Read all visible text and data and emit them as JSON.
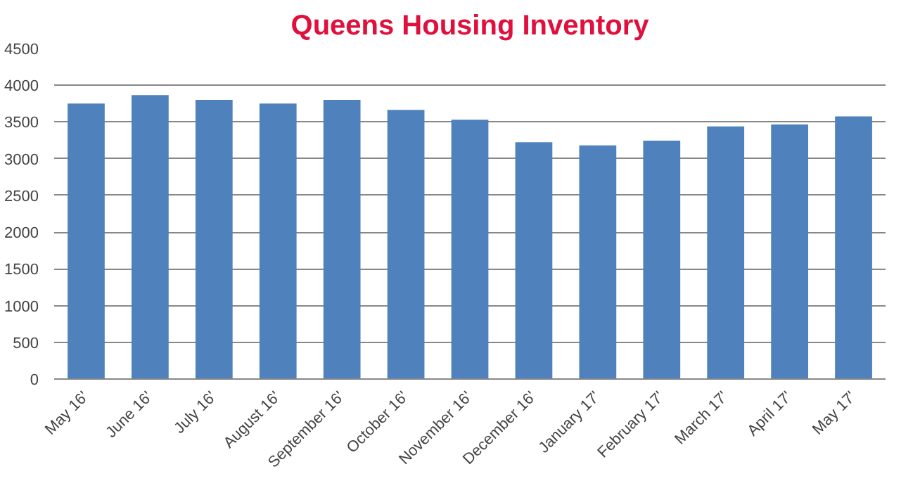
{
  "chart_data": {
    "type": "bar",
    "title": "Queens Housing Inventory",
    "categories": [
      "May 16'",
      "June 16'",
      "July 16'",
      "August 16'",
      "September 16'",
      "October 16'",
      "November 16'",
      "December 16'",
      "January 17'",
      "February 17'",
      "March 17'",
      "April 17'",
      "May 17'"
    ],
    "values": [
      3750,
      3865,
      3800,
      3750,
      3800,
      3665,
      3530,
      3225,
      3180,
      3245,
      3440,
      3465,
      3575
    ],
    "color": "#4f81bd",
    "ylim": [
      0,
      4500
    ],
    "yticks": [
      0,
      500,
      1000,
      1500,
      2000,
      2500,
      3000,
      3500,
      4000,
      4500
    ],
    "grid": "y"
  }
}
